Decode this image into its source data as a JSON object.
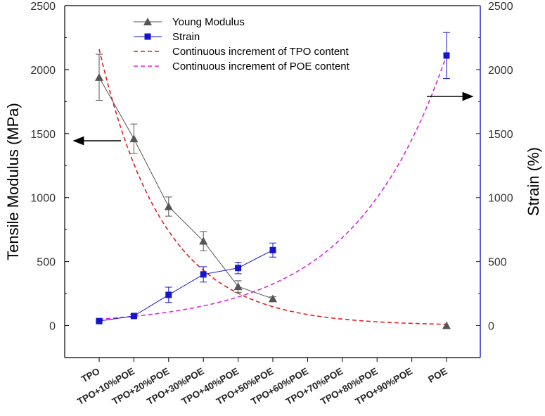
{
  "chart_data": {
    "type": "line",
    "categories": [
      "TPO",
      "TPO+10%POE",
      "TPO+20%POE",
      "TPO+30%POE",
      "TPO+40%POE",
      "TPO+50%POE",
      "TPO+60%POE",
      "TPO+70%POE",
      "TPO+80%POE",
      "TPO+90%POE",
      "POE"
    ],
    "ylabel_left": "Tensile Modulus (MPa)",
    "ylabel_right": "Strain (%)",
    "ylim_left": [
      -250,
      2500
    ],
    "ylim_right": [
      -250,
      2500
    ],
    "yticks_left": [
      0,
      500,
      1000,
      1500,
      2000,
      2500
    ],
    "yticks_right": [
      0,
      500,
      1000,
      1500,
      2000,
      2500
    ],
    "series": [
      {
        "name": "Young Modulus",
        "axis": "left",
        "color": "#555555",
        "marker": "triangle",
        "x": [
          0,
          1,
          2,
          3,
          4,
          5,
          10
        ],
        "values": [
          1940,
          1460,
          930,
          660,
          305,
          210,
          0
        ],
        "errors": [
          180,
          115,
          75,
          75,
          45,
          15,
          0
        ]
      },
      {
        "name": "Strain",
        "axis": "right",
        "color": "#1515cc",
        "marker": "square",
        "x": [
          0,
          1,
          2,
          3,
          4,
          5,
          10
        ],
        "values": [
          35,
          75,
          240,
          400,
          450,
          590,
          2110
        ],
        "errors": [
          8,
          12,
          60,
          60,
          45,
          55,
          180
        ]
      },
      {
        "name": "Continuous increment of TPO content",
        "axis": "left",
        "color": "#e02020",
        "style": "dashed",
        "fit": {
          "form": "a*exp(-b*x)",
          "a": 2160,
          "b": 0.5365
        },
        "x_range": [
          0,
          10
        ]
      },
      {
        "name": "Continuous increment of POE content",
        "axis": "right",
        "color": "#dd22dd",
        "style": "dashed",
        "fit": {
          "form": "a*exp(b*x)",
          "a": 50,
          "b": 0.3744
        },
        "x_range": [
          0,
          10
        ]
      }
    ],
    "legend": {
      "placement": "top-center",
      "entries": [
        "Young Modulus",
        "Strain",
        "Continuous increment of TPO content",
        "Continuous increment of POE content"
      ]
    },
    "annotations": [
      {
        "type": "arrow",
        "direction": "left",
        "meaning": "points to left axis (Tensile Modulus)"
      },
      {
        "type": "arrow",
        "direction": "right",
        "meaning": "points to right axis (Strain)"
      }
    ],
    "grid": false
  },
  "colors": {
    "left_axis": "#000000",
    "right_axis": "#1515cc",
    "tick_text": "#333333"
  }
}
